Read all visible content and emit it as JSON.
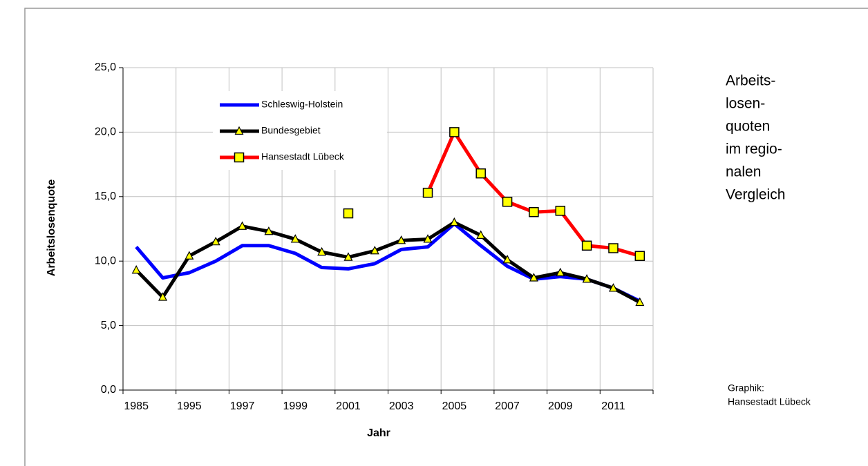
{
  "chart_data": {
    "type": "line",
    "y_label": "Arbeitslosenquote",
    "x_label": "Jahr",
    "side_title": [
      "Arbeits-",
      "losen-",
      "quoten",
      "im regio-",
      "nalen",
      "Vergleich"
    ],
    "credit": [
      "Graphik:",
      "Hansestadt Lübeck"
    ],
    "categories": [
      "1985",
      null,
      "1995",
      null,
      "1997",
      null,
      "1999",
      null,
      "2001",
      null,
      "2003",
      null,
      "2005",
      null,
      "2007",
      null,
      "2009",
      null,
      "2011",
      null
    ],
    "ylim": [
      0,
      25
    ],
    "yticks": [
      {
        "value": 0,
        "label": "0,0"
      },
      {
        "value": 5,
        "label": "5,0"
      },
      {
        "value": 10,
        "label": "10,0"
      },
      {
        "value": 15,
        "label": "15,0"
      },
      {
        "value": 20,
        "label": "20,0"
      },
      {
        "value": 25,
        "label": "25,0"
      }
    ],
    "grid": true,
    "legend": "upper left",
    "series": [
      {
        "name": "Schleswig-Holstein",
        "color": "#0000ff",
        "marker": "none",
        "values": [
          11.1,
          8.7,
          9.1,
          10.0,
          11.2,
          11.2,
          10.6,
          9.5,
          9.4,
          9.8,
          10.9,
          11.1,
          12.9,
          11.2,
          9.6,
          8.6,
          8.8,
          8.6,
          7.9,
          6.9
        ]
      },
      {
        "name": "Bundesgebiet",
        "color": "#000000",
        "marker": "triangle",
        "marker_color": "#ffff00",
        "values": [
          9.3,
          7.2,
          10.4,
          11.5,
          12.7,
          12.3,
          11.7,
          10.7,
          10.3,
          10.8,
          11.6,
          11.7,
          13.0,
          12.0,
          10.1,
          8.7,
          9.1,
          8.6,
          7.9,
          6.8
        ]
      },
      {
        "name": "Hansestadt Lübeck",
        "color": "#ff0000",
        "marker": "square",
        "marker_color": "#ffff00",
        "values": [
          null,
          null,
          null,
          null,
          null,
          null,
          null,
          null,
          13.7,
          null,
          null,
          15.3,
          20.0,
          16.8,
          14.6,
          13.8,
          13.9,
          11.2,
          11.0,
          10.4
        ]
      }
    ]
  }
}
